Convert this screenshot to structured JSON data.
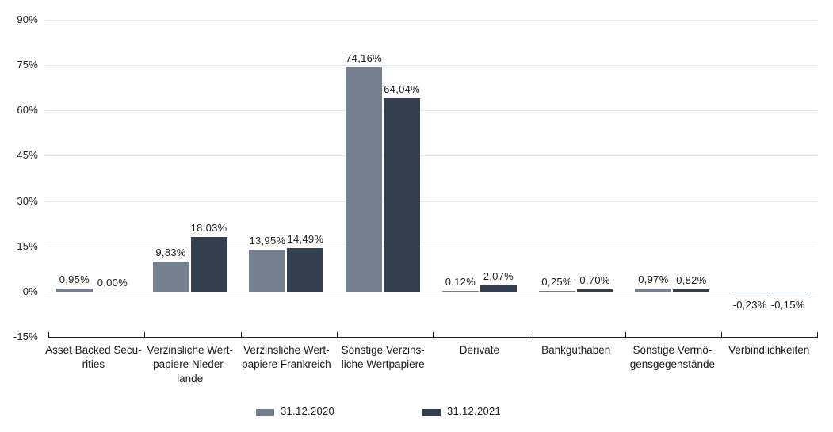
{
  "chart_data": {
    "type": "bar",
    "title": "",
    "xlabel": "",
    "ylabel": "",
    "unit": "%",
    "grid": true,
    "legend_position": "bottom",
    "y_axis": {
      "min": -15,
      "max": 90,
      "ticks": [
        90,
        75,
        60,
        45,
        30,
        15,
        0,
        -15
      ],
      "tick_labels": [
        "90%",
        "75%",
        "60%",
        "45%",
        "30%",
        "15%",
        "0%",
        "-15%"
      ]
    },
    "categories": [
      {
        "lines": [
          "Asset Backed Secu-",
          "rities"
        ]
      },
      {
        "lines": [
          "Verzinsliche Wert-",
          "papiere Nieder-",
          "lande"
        ]
      },
      {
        "lines": [
          "Verzinsliche Wert-",
          "papiere Frankreich"
        ]
      },
      {
        "lines": [
          "Sonstige Verzins-",
          "liche Wertpapiere"
        ]
      },
      {
        "lines": [
          "Derivate"
        ]
      },
      {
        "lines": [
          "Bankguthaben"
        ]
      },
      {
        "lines": [
          "Sonstige Vermö-",
          "gensgegenstände"
        ]
      },
      {
        "lines": [
          "Verbindlichkeiten"
        ]
      }
    ],
    "series": [
      {
        "name": "31.12.2020",
        "color": "#76818f",
        "values": [
          0.95,
          9.83,
          13.95,
          74.16,
          0.12,
          0.25,
          0.97,
          -0.23
        ],
        "labels": [
          "0,95%",
          "9,83%",
          "13,95%",
          "74,16%",
          "0,12%",
          "0,25%",
          "0,97%",
          "-0,23%"
        ]
      },
      {
        "name": "31.12.2021",
        "color": "#333f4f",
        "values": [
          0.0,
          18.03,
          14.49,
          64.04,
          2.07,
          0.7,
          0.82,
          -0.15
        ],
        "labels": [
          "0,00%",
          "18,03%",
          "14,49%",
          "64,04%",
          "2,07%",
          "0,70%",
          "0,82%",
          "-0,15%"
        ]
      }
    ]
  },
  "colors": {
    "background": "#ffffff",
    "gridline": "#e4e9ea",
    "axis": "#1a1a1a",
    "text": "#1a1a1a",
    "series_2020": "#76818f",
    "series_2021": "#333f4f"
  }
}
